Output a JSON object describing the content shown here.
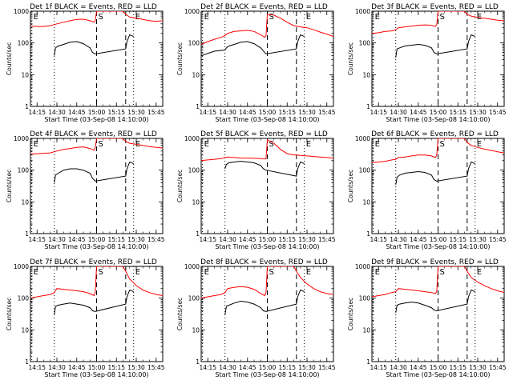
{
  "chart_data": {
    "type": "line",
    "xlabel": "Start Time (03-Sep-08 14:10:00)",
    "ylabel": "Counts/sec",
    "y_scale": "log",
    "ylim": [
      1,
      1000
    ],
    "x_range": [
      "14:10",
      "15:50"
    ],
    "x_ticks": [
      "14:15",
      "14:30",
      "14:45",
      "15:00",
      "15:15",
      "15:30",
      "15:45"
    ],
    "y_ticks": [
      "1",
      "10",
      "100",
      "1000"
    ],
    "marker_lines": [
      {
        "label": "E",
        "time": "14:11",
        "style": "dotted"
      },
      {
        "label": "",
        "time": "14:28",
        "style": "dotted"
      },
      {
        "label": "S",
        "time": "15:00",
        "style": "dashed"
      },
      {
        "label": "",
        "time": "15:22",
        "style": "dashed"
      },
      {
        "label": "E",
        "time": "15:28",
        "style": "dotted"
      }
    ],
    "panels": [
      {
        "title": "Det 1f BLACK = Events, RED = LLD",
        "ratio": 2.5,
        "series": [
          {
            "color": "#000000",
            "name": "Events",
            "x": [
              "14:28",
              "14:29",
              "14:31",
              "14:35",
              "14:40",
              "14:45",
              "14:50",
              "14:55",
              "14:57",
              "14:59",
              "15:22",
              "15:23",
              "15:25",
              "15:28"
            ],
            "values": [
              40,
              70,
              80,
              90,
              105,
              110,
              95,
              70,
              50,
              45,
              65,
              110,
              180,
              160
            ]
          },
          {
            "color": "#ff0000",
            "name": "LLD",
            "x": [
              "14:10",
              "14:15",
              "14:20",
              "14:25",
              "14:28",
              "14:30",
              "14:35",
              "14:40",
              "14:45",
              "14:50",
              "14:55",
              "14:58",
              "14:59",
              "15:00",
              "15:20",
              "15:22",
              "15:25",
              "15:30",
              "15:35",
              "15:40",
              "15:45",
              "15:50"
            ],
            "values": [
              340,
              330,
              330,
              350,
              380,
              400,
              450,
              500,
              550,
              560,
              500,
              450,
              500,
              1000,
              1000,
              800,
              650,
              600,
              550,
              500,
              480,
              500
            ]
          }
        ]
      },
      {
        "title": "Det 2f BLACK = Events, RED = LLD",
        "ratio": 2.5,
        "series": [
          {
            "color": "#000000",
            "name": "Events",
            "x": [
              "14:10",
              "14:20",
              "14:28",
              "14:29",
              "14:31",
              "14:35",
              "14:40",
              "14:45",
              "14:50",
              "14:55",
              "14:58",
              "14:59",
              "15:22",
              "15:23",
              "15:25",
              "15:28"
            ],
            "values": [
              40,
              55,
              60,
              70,
              80,
              90,
              105,
              110,
              95,
              70,
              50,
              45,
              65,
              110,
              180,
              160
            ]
          },
          {
            "color": "#ff0000",
            "name": "LLD",
            "x": [
              "14:10",
              "14:15",
              "14:20",
              "14:25",
              "14:28",
              "14:30",
              "14:35",
              "14:40",
              "14:45",
              "14:50",
              "14:55",
              "14:58",
              "14:59",
              "15:00",
              "15:05",
              "15:10",
              "15:15",
              "15:20",
              "15:22",
              "15:25",
              "15:30",
              "15:35",
              "15:40",
              "15:45",
              "15:50"
            ],
            "values": [
              90,
              110,
              130,
              150,
              170,
              200,
              230,
              240,
              250,
              230,
              180,
              150,
              170,
              800,
              750,
              600,
              450,
              350,
              340,
              320,
              300,
              260,
              220,
              190,
              160
            ]
          }
        ]
      },
      {
        "title": "Det 3f BLACK = Events, RED = LLD",
        "ratio": 3,
        "series": [
          {
            "color": "#000000",
            "name": "Events",
            "x": [
              "14:28",
              "14:29",
              "14:31",
              "14:35",
              "14:40",
              "14:45",
              "14:50",
              "14:55",
              "14:57",
              "14:59",
              "15:22",
              "15:23",
              "15:25",
              "15:28"
            ],
            "values": [
              35,
              65,
              70,
              80,
              85,
              90,
              85,
              70,
              50,
              45,
              65,
              110,
              180,
              160
            ]
          },
          {
            "color": "#ff0000",
            "name": "LLD",
            "x": [
              "14:10",
              "14:15",
              "14:20",
              "14:25",
              "14:28",
              "14:30",
              "14:35",
              "14:40",
              "14:45",
              "14:50",
              "14:55",
              "14:58",
              "14:59",
              "15:00",
              "15:20",
              "15:22",
              "15:25",
              "15:30",
              "15:35",
              "15:40",
              "15:45",
              "15:50"
            ],
            "values": [
              200,
              210,
              230,
              240,
              260,
              300,
              320,
              340,
              360,
              370,
              360,
              330,
              380,
              1000,
              1000,
              800,
              700,
              640,
              600,
              560,
              520,
              500
            ]
          }
        ]
      },
      {
        "title": "Det 4f BLACK = Events, RED = LLD",
        "ratio": 3,
        "series": [
          {
            "color": "#000000",
            "name": "Events",
            "x": [
              "14:28",
              "14:29",
              "14:31",
              "14:35",
              "14:40",
              "14:45",
              "14:50",
              "14:55",
              "14:57",
              "14:59",
              "15:22",
              "15:23",
              "15:25",
              "15:28"
            ],
            "values": [
              40,
              70,
              80,
              100,
              110,
              110,
              100,
              80,
              55,
              45,
              65,
              110,
              180,
              160
            ]
          },
          {
            "color": "#ff0000",
            "name": "LLD",
            "x": [
              "14:10",
              "14:15",
              "14:20",
              "14:25",
              "14:28",
              "14:30",
              "14:35",
              "14:40",
              "14:45",
              "14:50",
              "14:55",
              "14:58",
              "14:59",
              "15:00",
              "15:20",
              "15:22",
              "15:25",
              "15:30",
              "15:35",
              "15:40",
              "15:45",
              "15:50"
            ],
            "values": [
              320,
              330,
              340,
              350,
              380,
              400,
              450,
              480,
              520,
              540,
              480,
              420,
              500,
              1000,
              1000,
              800,
              700,
              650,
              600,
              550,
              520,
              500
            ]
          }
        ]
      },
      {
        "title": "Det 5f BLACK = Events, RED = LLD",
        "ratio": 1.3,
        "series": [
          {
            "color": "#000000",
            "name": "Events",
            "x": [
              "14:28",
              "14:29",
              "14:31",
              "14:35",
              "14:40",
              "14:45",
              "14:50",
              "14:55",
              "14:57",
              "14:59",
              "15:22",
              "15:23",
              "15:25",
              "15:28"
            ],
            "values": [
              110,
              150,
              170,
              180,
              190,
              180,
              170,
              140,
              110,
              100,
              65,
              110,
              180,
              160
            ]
          },
          {
            "color": "#ff0000",
            "name": "LLD",
            "x": [
              "14:10",
              "14:15",
              "14:20",
              "14:25",
              "14:28",
              "14:30",
              "14:35",
              "14:40",
              "14:45",
              "14:50",
              "14:55",
              "14:58",
              "14:59",
              "15:00",
              "15:05",
              "15:10",
              "15:15",
              "15:20",
              "15:22",
              "15:25",
              "15:30",
              "15:35",
              "15:40",
              "15:45",
              "15:50"
            ],
            "values": [
              200,
              210,
              220,
              230,
              250,
              260,
              250,
              240,
              240,
              235,
              230,
              225,
              230,
              900,
              700,
              450,
              330,
              300,
              300,
              290,
              280,
              270,
              260,
              250,
              240
            ]
          }
        ]
      },
      {
        "title": "Det 6f BLACK = Events, RED = LLD",
        "ratio": 2.5,
        "series": [
          {
            "color": "#000000",
            "name": "Events",
            "x": [
              "14:28",
              "14:29",
              "14:31",
              "14:35",
              "14:40",
              "14:45",
              "14:50",
              "14:55",
              "14:57",
              "14:59",
              "15:22",
              "15:23",
              "15:25",
              "15:28"
            ],
            "values": [
              35,
              60,
              70,
              80,
              85,
              90,
              85,
              70,
              50,
              45,
              65,
              110,
              180,
              160
            ]
          },
          {
            "color": "#ff0000",
            "name": "LLD",
            "x": [
              "14:10",
              "14:15",
              "14:20",
              "14:25",
              "14:28",
              "14:30",
              "14:35",
              "14:40",
              "14:45",
              "14:50",
              "14:55",
              "14:58",
              "14:59",
              "15:00",
              "15:20",
              "15:22",
              "15:25",
              "15:30",
              "15:35",
              "15:40",
              "15:45",
              "15:50"
            ],
            "values": [
              170,
              180,
              190,
              210,
              220,
              250,
              260,
              280,
              300,
              300,
              280,
              250,
              300,
              1000,
              1000,
              750,
              600,
              520,
              460,
              420,
              380,
              350
            ]
          }
        ]
      },
      {
        "title": "Det 7f BLACK = Events, RED = LLD",
        "ratio": 2,
        "series": [
          {
            "color": "#000000",
            "name": "Events",
            "x": [
              "14:28",
              "14:29",
              "14:31",
              "14:35",
              "14:40",
              "14:45",
              "14:50",
              "14:55",
              "14:57",
              "14:59",
              "15:22",
              "15:23",
              "15:25",
              "15:28"
            ],
            "values": [
              30,
              55,
              60,
              65,
              70,
              65,
              60,
              50,
              40,
              38,
              65,
              110,
              180,
              160
            ]
          },
          {
            "color": "#ff0000",
            "name": "LLD",
            "x": [
              "14:10",
              "14:15",
              "14:20",
              "14:25",
              "14:28",
              "14:30",
              "14:35",
              "14:40",
              "14:45",
              "14:50",
              "14:55",
              "14:58",
              "14:59",
              "15:00",
              "15:20",
              "15:22",
              "15:25",
              "15:30",
              "15:35",
              "15:40",
              "15:45",
              "15:50"
            ],
            "values": [
              100,
              110,
              120,
              130,
              150,
              200,
              190,
              180,
              170,
              160,
              140,
              120,
              150,
              1000,
              1000,
              700,
              400,
              250,
              180,
              150,
              130,
              120
            ]
          }
        ]
      },
      {
        "title": "Det 8f BLACK = Events, RED = LLD",
        "ratio": 2,
        "series": [
          {
            "color": "#000000",
            "name": "Events",
            "x": [
              "14:28",
              "14:29",
              "14:31",
              "14:35",
              "14:40",
              "14:45",
              "14:50",
              "14:55",
              "14:57",
              "14:59",
              "15:22",
              "15:23",
              "15:25",
              "15:28"
            ],
            "values": [
              30,
              55,
              60,
              70,
              80,
              75,
              65,
              50,
              40,
              38,
              65,
              110,
              180,
              160
            ]
          },
          {
            "color": "#ff0000",
            "name": "LLD",
            "x": [
              "14:10",
              "14:15",
              "14:20",
              "14:25",
              "14:28",
              "14:30",
              "14:35",
              "14:40",
              "14:45",
              "14:50",
              "14:55",
              "14:58",
              "14:59",
              "15:00",
              "15:20",
              "15:22",
              "15:25",
              "15:30",
              "15:35",
              "15:40",
              "15:45",
              "15:50"
            ],
            "values": [
              100,
              110,
              120,
              130,
              150,
              200,
              220,
              230,
              220,
              190,
              140,
              120,
              150,
              1000,
              1000,
              700,
              450,
              280,
              200,
              160,
              140,
              130
            ]
          }
        ]
      },
      {
        "title": "Det 9f BLACK = Events, RED = LLD",
        "ratio": 2.5,
        "series": [
          {
            "color": "#000000",
            "name": "Events",
            "x": [
              "14:28",
              "14:29",
              "14:31",
              "14:35",
              "14:40",
              "14:45",
              "14:50",
              "14:55",
              "14:57",
              "14:59",
              "15:22",
              "15:23",
              "15:25",
              "15:28"
            ],
            "values": [
              35,
              60,
              65,
              70,
              75,
              70,
              60,
              50,
              42,
              40,
              65,
              110,
              180,
              160
            ]
          },
          {
            "color": "#ff0000",
            "name": "LLD",
            "x": [
              "14:10",
              "14:15",
              "14:20",
              "14:25",
              "14:28",
              "14:30",
              "14:35",
              "14:40",
              "14:45",
              "14:50",
              "14:55",
              "14:58",
              "14:59",
              "15:00",
              "15:20",
              "15:22",
              "15:25",
              "15:30",
              "15:35",
              "15:40",
              "15:45",
              "15:50"
            ],
            "values": [
              110,
              120,
              130,
              150,
              160,
              200,
              190,
              180,
              170,
              160,
              150,
              140,
              160,
              1000,
              1000,
              700,
              450,
              320,
              250,
              200,
              170,
              150
            ]
          }
        ]
      }
    ]
  }
}
